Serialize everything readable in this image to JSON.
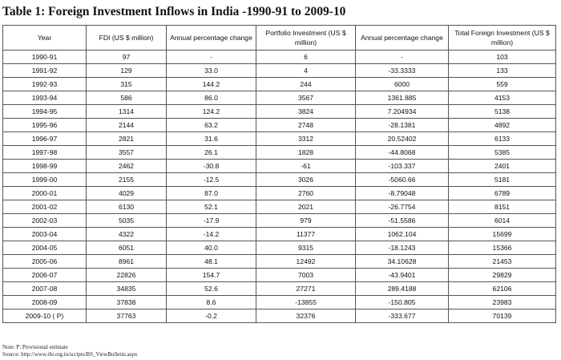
{
  "title": "Table 1: Foreign Investment Inflows in India -1990-91 to 2009-10",
  "columns": [
    "Year",
    "FDI (US $ million)",
    "Annual percentage change",
    "Portfolio Investment (US $ million)",
    "Annual percentage change",
    "Total Foreign Investment (US $ million)"
  ],
  "rows": [
    [
      "1990-91",
      "97",
      "-",
      "6",
      "-",
      "103"
    ],
    [
      "1991-92",
      "129",
      "33.0",
      "4",
      "-33.3333",
      "133"
    ],
    [
      "1992-93",
      "315",
      "144.2",
      "244",
      "6000",
      "559"
    ],
    [
      "1993-94",
      "586",
      "86.0",
      "3567",
      "1361.885",
      "4153"
    ],
    [
      "1994-95",
      "1314",
      "124.2",
      "3824",
      "7.204934",
      "5138"
    ],
    [
      "1995-96",
      "2144",
      "63.2",
      "2748",
      "-28.1381",
      "4892"
    ],
    [
      "1996-97",
      "2821",
      "31.6",
      "3312",
      "20.52402",
      "6133"
    ],
    [
      "1997-98",
      "3557",
      "26.1",
      "1828",
      "-44.8068",
      "5385"
    ],
    [
      "1998-99",
      "2462",
      "-30.8",
      "-61",
      "-103.337",
      "2401"
    ],
    [
      "1999-00",
      "2155",
      "-12.5",
      "3026",
      "-5060.66",
      "5181"
    ],
    [
      "2000-01",
      "4029",
      "87.0",
      "2760",
      "-8.79048",
      "6789"
    ],
    [
      "2001-02",
      "6130",
      "52.1",
      "2021",
      "-26.7754",
      "8151"
    ],
    [
      "2002-03",
      "5035",
      "-17.9",
      "979",
      "-51.5586",
      "6014"
    ],
    [
      "2003-04",
      "4322",
      "-14.2",
      "11377",
      "1062.104",
      "15699"
    ],
    [
      "2004-05",
      "6051",
      "40.0",
      "9315",
      "-18.1243",
      "15366"
    ],
    [
      "2005-06",
      "8961",
      "48.1",
      "12492",
      "34.10628",
      "21453"
    ],
    [
      "2006-07",
      "22826",
      "154.7",
      "7003",
      "-43.9401",
      "29829"
    ],
    [
      "2007-08",
      "34835",
      "52.6",
      "27271",
      "289.4188",
      "62106"
    ],
    [
      "2008-09",
      "37838",
      "8.6",
      "-13855",
      "-150.805",
      "23983"
    ],
    [
      "2009-10 ( P)",
      "37763",
      "-0.2",
      "32376",
      "-333.677",
      "70139"
    ]
  ],
  "note": "Note: P: Provisional estimate",
  "source": "Source: http://www.rbi.org.in/scripts/BS_ViewBulletin.aspx"
}
